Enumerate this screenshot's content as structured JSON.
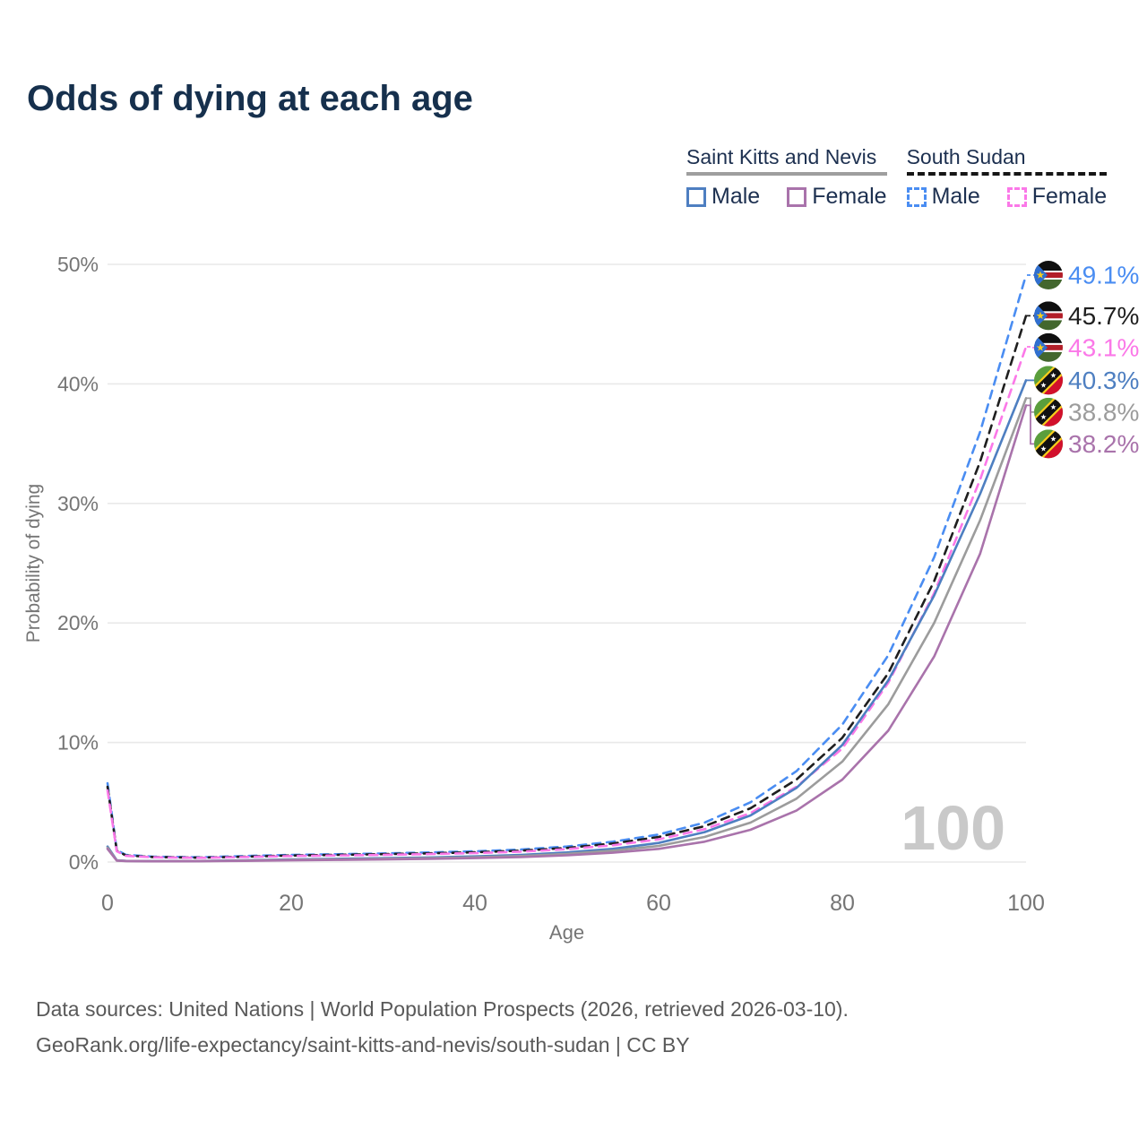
{
  "title": "Odds of dying at each age",
  "legend": {
    "groups": [
      {
        "label": "Saint Kitts and Nevis",
        "line_style": "solid",
        "underline_color": "#9e9e9e",
        "items": [
          {
            "label": "Male",
            "box_color": "#4e7fc1",
            "box_style": "solid"
          },
          {
            "label": "Female",
            "box_color": "#a973ab",
            "box_style": "solid"
          }
        ]
      },
      {
        "label": "South Sudan",
        "line_style": "dashed",
        "underline_color": "#161616",
        "items": [
          {
            "label": "Male",
            "box_color": "#4a8df2",
            "box_style": "dashed"
          },
          {
            "label": "Female",
            "box_color": "#fb78e8",
            "box_style": "dashed"
          }
        ]
      }
    ]
  },
  "watermark": "100",
  "footer": {
    "line1": "Data sources: United Nations | World Population Prospects (2026, retrieved 2026-03-10).",
    "line2": "GeoRank.org/life-expectancy/saint-kitts-and-nevis/south-sudan | CC BY"
  },
  "chart_data": {
    "type": "line",
    "title": "Odds of dying at each age",
    "xlabel": "Age",
    "ylabel": "Probability of dying",
    "xlim": [
      0,
      100
    ],
    "ylim": [
      0,
      50
    ],
    "grid": true,
    "legend_position": "top-right",
    "xticks": [
      {
        "value": 0,
        "label": "0"
      },
      {
        "value": 20,
        "label": "20"
      },
      {
        "value": 40,
        "label": "40"
      },
      {
        "value": 60,
        "label": "60"
      },
      {
        "value": 80,
        "label": "80"
      },
      {
        "value": 100,
        "label": "100"
      }
    ],
    "yticks": [
      {
        "value": 0,
        "label": "0%"
      },
      {
        "value": 10,
        "label": "10%"
      },
      {
        "value": 20,
        "label": "20%"
      },
      {
        "value": 30,
        "label": "30%"
      },
      {
        "value": 40,
        "label": "40%"
      },
      {
        "value": 50,
        "label": "50%"
      }
    ],
    "x_ages": [
      0,
      1,
      2,
      5,
      10,
      15,
      20,
      25,
      30,
      35,
      40,
      45,
      50,
      55,
      60,
      65,
      70,
      75,
      80,
      85,
      90,
      95,
      100
    ],
    "series": [
      {
        "name": "South Sudan Male",
        "country": "South Sudan",
        "sex": "Male",
        "color": "#4a8df2",
        "style": "dashed",
        "end_label": "49.1%",
        "end_value": 49.1,
        "values": [
          6.6,
          1.0,
          0.6,
          0.45,
          0.4,
          0.5,
          0.6,
          0.65,
          0.72,
          0.8,
          0.9,
          1.05,
          1.3,
          1.7,
          2.3,
          3.3,
          5.0,
          7.6,
          11.5,
          17.3,
          25.5,
          36.0,
          49.1
        ]
      },
      {
        "name": "South Sudan Both sexes",
        "country": "South Sudan",
        "sex": "Both",
        "color": "#1f1f1f",
        "style": "dashed",
        "end_label": "45.7%",
        "end_value": 45.7,
        "values": [
          6.3,
          0.95,
          0.55,
          0.42,
          0.37,
          0.45,
          0.55,
          0.6,
          0.66,
          0.73,
          0.82,
          0.95,
          1.18,
          1.55,
          2.1,
          3.0,
          4.5,
          6.9,
          10.4,
          15.8,
          23.5,
          33.5,
          45.7
        ]
      },
      {
        "name": "South Sudan Female",
        "country": "South Sudan",
        "sex": "Female",
        "color": "#fb78e8",
        "style": "dashed",
        "end_label": "43.1%",
        "end_value": 43.1,
        "values": [
          6.0,
          0.9,
          0.52,
          0.4,
          0.35,
          0.42,
          0.5,
          0.55,
          0.6,
          0.67,
          0.75,
          0.87,
          1.08,
          1.4,
          1.9,
          2.75,
          4.1,
          6.3,
          9.5,
          15.0,
          22.5,
          32.0,
          43.1
        ]
      },
      {
        "name": "Saint Kitts and Nevis Male",
        "country": "Saint Kitts and Nevis",
        "sex": "Male",
        "color": "#4e7fc1",
        "style": "solid",
        "end_label": "40.3%",
        "end_value": 40.3,
        "values": [
          1.3,
          0.15,
          0.1,
          0.08,
          0.09,
          0.15,
          0.22,
          0.27,
          0.32,
          0.38,
          0.47,
          0.6,
          0.8,
          1.1,
          1.6,
          2.5,
          3.9,
          6.2,
          9.8,
          15.2,
          22.3,
          30.8,
          40.3
        ]
      },
      {
        "name": "Saint Kitts and Nevis Both sexes",
        "country": "Saint Kitts and Nevis",
        "sex": "Both",
        "color": "#9c9c9c",
        "style": "solid",
        "end_label": "38.8%",
        "end_value": 38.8,
        "values": [
          1.2,
          0.13,
          0.09,
          0.07,
          0.08,
          0.13,
          0.18,
          0.22,
          0.27,
          0.32,
          0.4,
          0.5,
          0.68,
          0.95,
          1.35,
          2.1,
          3.3,
          5.3,
          8.4,
          13.2,
          20.0,
          28.6,
          38.8
        ]
      },
      {
        "name": "Saint Kitts and Nevis Female",
        "country": "Saint Kitts and Nevis",
        "sex": "Female",
        "color": "#a973ab",
        "style": "solid",
        "end_label": "38.2%",
        "end_value": 38.2,
        "values": [
          1.1,
          0.12,
          0.08,
          0.06,
          0.07,
          0.1,
          0.14,
          0.18,
          0.22,
          0.27,
          0.33,
          0.42,
          0.56,
          0.78,
          1.1,
          1.7,
          2.7,
          4.3,
          6.9,
          11.0,
          17.2,
          25.8,
          38.2
        ]
      }
    ]
  }
}
